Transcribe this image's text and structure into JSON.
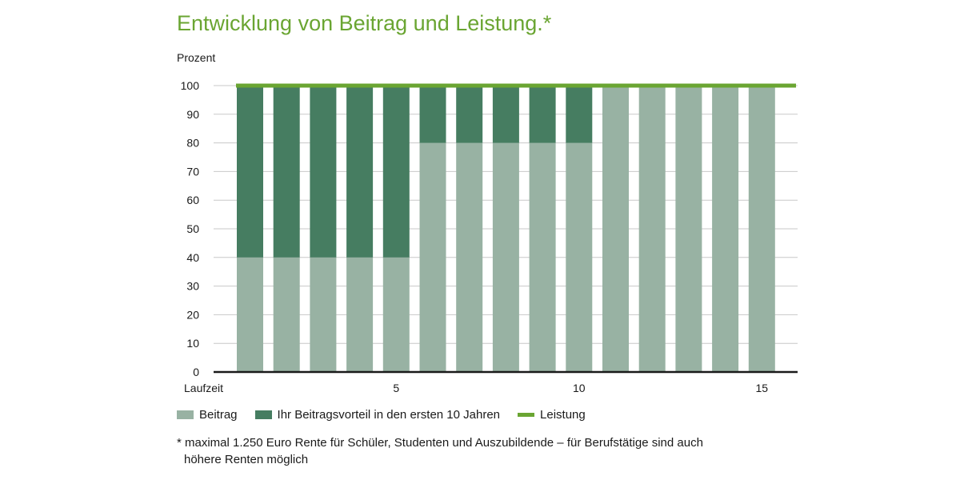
{
  "title": "Entwicklung von Beitrag und Leistung.*",
  "chart_data": {
    "type": "bar",
    "stacked": true,
    "ylabel": "Prozent",
    "xlabel": "Laufzeit",
    "ylim": [
      0,
      100
    ],
    "yticks": [
      0,
      10,
      20,
      30,
      40,
      50,
      60,
      70,
      80,
      90,
      100
    ],
    "xticks": [
      5,
      10,
      15
    ],
    "x": [
      1,
      2,
      3,
      4,
      5,
      6,
      7,
      8,
      9,
      10,
      11,
      12,
      13,
      14,
      15
    ],
    "grid": true,
    "series": [
      {
        "name": "Beitrag",
        "kind": "bar",
        "color": "#98b2a3",
        "values": [
          40,
          40,
          40,
          40,
          40,
          80,
          80,
          80,
          80,
          80,
          100,
          100,
          100,
          100,
          100
        ]
      },
      {
        "name": "Ihr Beitragsvorteil in den ersten 10 Jahren",
        "kind": "bar",
        "color": "#467d61",
        "values": [
          60,
          60,
          60,
          60,
          60,
          20,
          20,
          20,
          20,
          20,
          0,
          0,
          0,
          0,
          0
        ]
      },
      {
        "name": "Leistung",
        "kind": "line",
        "color": "#6aa532",
        "values": [
          100,
          100,
          100,
          100,
          100,
          100,
          100,
          100,
          100,
          100,
          100,
          100,
          100,
          100,
          100
        ]
      }
    ]
  },
  "footnote": {
    "line1": "* maximal 1.250 Euro Rente für Schüler, Studenten und Auszubildende – für Berufstätige sind auch",
    "line2": "höhere Renten möglich"
  }
}
